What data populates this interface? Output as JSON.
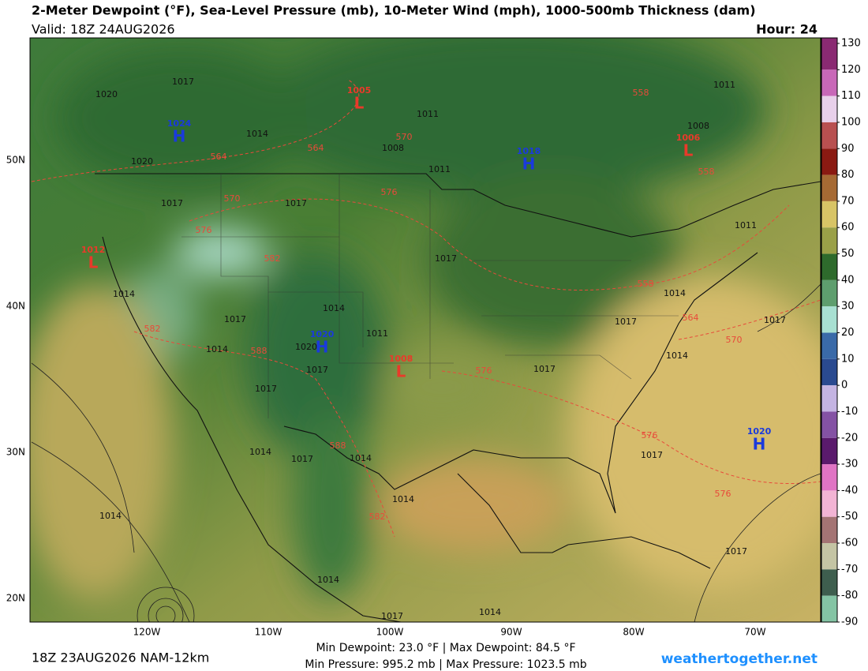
{
  "header": {
    "title": "2-Meter Dewpoint (°F), Sea-Level Pressure (mb), 10-Meter Wind (mph), 1000-500mb Thickness (dam)",
    "valid": "Valid: 18Z 24AUG2026",
    "hour": "Hour: 24"
  },
  "map": {
    "lon_labels": [
      "120W",
      "110W",
      "100W",
      "90W",
      "80W",
      "70W"
    ],
    "lat_labels": [
      "50N",
      "40N",
      "30N",
      "20N"
    ],
    "pressure_centers": [
      {
        "letter": "H",
        "pressure": 1024
      },
      {
        "letter": "L",
        "pressure": 1005
      },
      {
        "letter": "H",
        "pressure": 1018
      },
      {
        "letter": "L",
        "pressure": 1006
      },
      {
        "letter": "L",
        "pressure": 1012
      },
      {
        "letter": "H",
        "pressure": 1020
      },
      {
        "letter": "L",
        "pressure": 1008
      },
      {
        "letter": "H",
        "pressure": 1020
      }
    ],
    "isobar_labels": [
      1017,
      1020,
      1014,
      1011,
      1008,
      1011,
      1020,
      1017,
      1017,
      1017,
      1008,
      1011,
      1011,
      1014,
      1014,
      1017,
      1014,
      1020,
      1011,
      1017,
      1017,
      1017,
      1014,
      1017,
      1017,
      1014,
      1014,
      1017,
      1014,
      1017,
      1014,
      1014,
      1017,
      1014,
      1017,
      1014
    ],
    "thickness_labels": [
      564,
      564,
      570,
      558,
      558,
      570,
      576,
      576,
      582,
      558,
      564,
      570,
      582,
      588,
      576,
      588,
      576,
      576,
      582
    ]
  },
  "colorbar": {
    "ticks": [
      130,
      120,
      110,
      100,
      90,
      80,
      70,
      60,
      50,
      40,
      30,
      20,
      10,
      0,
      -10,
      -20,
      -30,
      -40,
      -50,
      -60,
      -70,
      -80,
      -90
    ],
    "colors": [
      "#8a2a72",
      "#c868b8",
      "#e8d0ea",
      "#b85050",
      "#8a1a12",
      "#a66a34",
      "#d8c466",
      "#9aa048",
      "#2e6a2c",
      "#5e9e6e",
      "#a8e0d2",
      "#3a6aa8",
      "#2a4a90",
      "#c4b4e2",
      "#8452a4",
      "#5a1a6c",
      "#e074c4",
      "#f2b4d4",
      "#a47474",
      "#c4c4a4",
      "#3e5e4e",
      "#84c4a4"
    ]
  },
  "footer": {
    "run": "18Z 23AUG2026 NAM-12km",
    "stats": [
      "Min Dewpoint:  23.0 °F | Max Dewpoint:  84.5 °F",
      "Min Pressure: 995.2 mb | Max Pressure: 1023.5 mb"
    ],
    "site": "weathertogether.net"
  }
}
